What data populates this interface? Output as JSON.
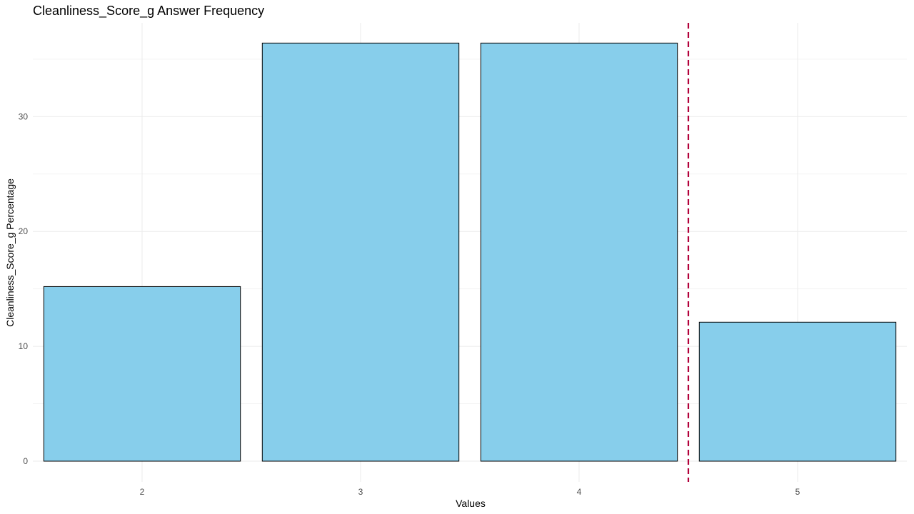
{
  "chart_data": {
    "type": "bar",
    "title": "Cleanliness_Score_g Answer Frequency",
    "xlabel": "Values",
    "ylabel": "Cleanliness_Score_g Percentage",
    "categories": [
      "2",
      "3",
      "4",
      "5"
    ],
    "values": [
      15.2,
      36.4,
      36.4,
      12.1
    ],
    "ylim": [
      0,
      38
    ],
    "yticks": [
      0,
      10,
      20,
      30
    ],
    "grid": true,
    "reference_line": {
      "x_position": 4.5,
      "style": "dashed",
      "color": "#b2003a"
    },
    "colors": {
      "bar_fill": "#87ceeb",
      "bar_stroke": "#000000"
    }
  }
}
